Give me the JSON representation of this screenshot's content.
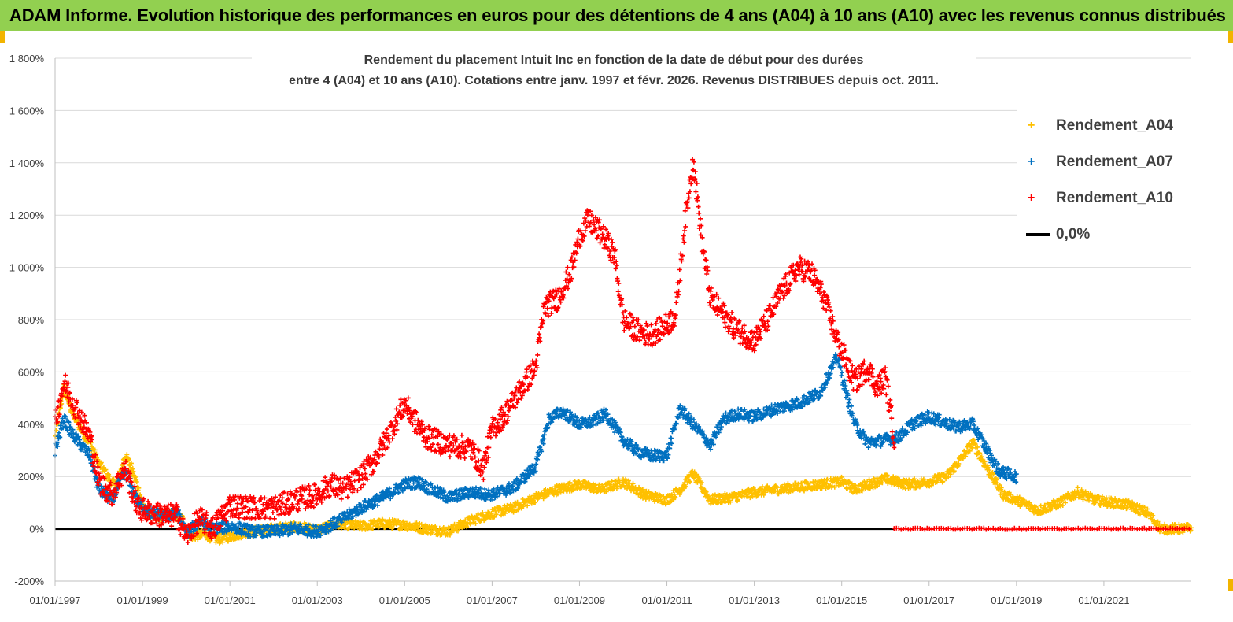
{
  "header": {
    "title": "ADAM Informe. Evolution historique des performances en euros pour des détentions de 4 ans (A04) à 10 ans (A10) avec les revenus connus distribués"
  },
  "chart_data": {
    "type": "scatter",
    "title_line1": "Rendement du placement Intuit Inc en fonction de la date de début pour des durées",
    "title_line2": "entre 4 (A04) et 10 ans (A10). Cotations entre janv. 1997 et févr. 2026. Revenus DISTRIBUES depuis oct. 2011.",
    "xlabel": "",
    "ylabel": "",
    "xlim": [
      1997.0,
      2023.0
    ],
    "ylim": [
      -200,
      1800
    ],
    "y_ticks": [
      "-200%",
      "0%",
      "200%",
      "400%",
      "600%",
      "800%",
      "1 000%",
      "1 200%",
      "1 400%",
      "1 600%",
      "1 800%"
    ],
    "x_ticks": [
      "01/01/1997",
      "01/01/1999",
      "01/01/2001",
      "01/01/2003",
      "01/01/2005",
      "01/01/2007",
      "01/01/2009",
      "01/01/2011",
      "01/01/2013",
      "01/01/2015",
      "01/01/2017",
      "01/01/2019",
      "01/01/2021"
    ],
    "legend": [
      "Rendement_A04",
      "Rendement_A07",
      "Rendement_A10",
      "0,0%"
    ],
    "legend_position": "right",
    "series": [
      {
        "name": "Rendement_A04",
        "color": "#ffc000",
        "x": [
          1997.0,
          1997.2,
          1997.4,
          1997.6,
          1997.8,
          1998.0,
          1998.2,
          1998.4,
          1998.6,
          1998.8,
          1999.0,
          1999.3,
          1999.6,
          1999.9,
          2000.1,
          2000.4,
          2000.7,
          2001.0,
          2001.3,
          2001.6,
          2002.0,
          2002.5,
          2003.0,
          2003.5,
          2004.0,
          2004.5,
          2005.0,
          2005.5,
          2006.0,
          2006.5,
          2007.0,
          2007.5,
          2008.0,
          2008.5,
          2009.0,
          2009.5,
          2010.0,
          2010.5,
          2011.0,
          2011.3,
          2011.6,
          2012.0,
          2012.5,
          2013.0,
          2013.5,
          2014.0,
          2014.5,
          2015.0,
          2015.3,
          2015.6,
          2016.0,
          2016.5,
          2017.0,
          2017.4,
          2017.7,
          2018.0,
          2018.3,
          2018.7,
          2019.0,
          2019.5,
          2020.0,
          2020.4,
          2020.8,
          2021.2,
          2021.6,
          2022.0,
          2022.3,
          2022.6,
          2023.0
        ],
        "y": [
          350,
          540,
          440,
          380,
          330,
          250,
          200,
          160,
          280,
          220,
          80,
          40,
          60,
          40,
          -30,
          -20,
          -40,
          -30,
          -15,
          -10,
          0,
          10,
          -5,
          20,
          10,
          20,
          15,
          0,
          -10,
          30,
          60,
          80,
          120,
          150,
          170,
          150,
          180,
          130,
          110,
          150,
          210,
          110,
          120,
          140,
          150,
          160,
          170,
          180,
          150,
          170,
          190,
          170,
          180,
          200,
          260,
          330,
          240,
          130,
          110,
          70,
          100,
          140,
          110,
          100,
          90,
          60,
          0,
          0,
          0
        ],
        "jitter": 18
      },
      {
        "name": "Rendement_A07",
        "color": "#0070c0",
        "x": [
          1997.0,
          1997.2,
          1997.4,
          1997.6,
          1997.8,
          1998.0,
          1998.3,
          1998.6,
          1998.9,
          1999.2,
          1999.5,
          1999.8,
          2000.0,
          2000.3,
          2000.6,
          2001.0,
          2001.5,
          2002.0,
          2002.5,
          2003.0,
          2003.5,
          2004.0,
          2004.5,
          2005.0,
          2005.3,
          2005.6,
          2006.0,
          2006.5,
          2007.0,
          2007.5,
          2008.0,
          2008.3,
          2008.6,
          2009.0,
          2009.3,
          2009.6,
          2010.0,
          2010.3,
          2010.6,
          2011.0,
          2011.3,
          2011.6,
          2012.0,
          2012.3,
          2012.6,
          2013.0,
          2013.5,
          2014.0,
          2014.5,
          2014.9,
          2015.1,
          2015.3,
          2015.6,
          2016.0,
          2016.3,
          2016.6,
          2017.0,
          2017.3,
          2017.6,
          2018.0,
          2018.3,
          2018.6,
          2019.0
        ],
        "y": [
          300,
          420,
          360,
          320,
          280,
          150,
          110,
          220,
          100,
          60,
          50,
          60,
          -20,
          30,
          0,
          10,
          -10,
          -10,
          0,
          -10,
          30,
          80,
          120,
          170,
          180,
          150,
          120,
          140,
          130,
          160,
          240,
          420,
          450,
          400,
          410,
          440,
          340,
          300,
          280,
          280,
          460,
          400,
          320,
          420,
          440,
          430,
          460,
          480,
          520,
          660,
          520,
          400,
          330,
          340,
          350,
          400,
          430,
          410,
          390,
          400,
          310,
          220,
          200
        ],
        "jitter": 22
      },
      {
        "name": "Rendement_A10",
        "color": "#ff0000",
        "x": [
          1997.0,
          1997.2,
          1997.4,
          1997.6,
          1997.8,
          1998.0,
          1998.3,
          1998.6,
          1998.9,
          1999.2,
          1999.5,
          1999.8,
          2000.0,
          2000.3,
          2000.6,
          2001.0,
          2001.5,
          2002.0,
          2002.5,
          2003.0,
          2003.3,
          2003.6,
          2004.0,
          2004.3,
          2004.6,
          2005.0,
          2005.2,
          2005.5,
          2006.0,
          2006.5,
          2006.8,
          2007.0,
          2007.3,
          2007.6,
          2008.0,
          2008.2,
          2008.5,
          2008.8,
          2009.0,
          2009.2,
          2009.5,
          2009.8,
          2010.0,
          2010.3,
          2010.6,
          2011.0,
          2011.2,
          2011.4,
          2011.6,
          2011.8,
          2012.0,
          2012.3,
          2012.6,
          2013.0,
          2013.3,
          2013.6,
          2014.0,
          2014.3,
          2014.6,
          2014.9,
          2015.1,
          2015.3,
          2015.6,
          2015.8,
          2016.0,
          2016.2
        ],
        "y": [
          400,
          560,
          490,
          420,
          350,
          180,
          130,
          230,
          80,
          60,
          50,
          50,
          -30,
          40,
          0,
          90,
          80,
          80,
          110,
          130,
          170,
          150,
          200,
          260,
          350,
          480,
          420,
          350,
          320,
          310,
          230,
          380,
          440,
          520,
          620,
          850,
          880,
          980,
          1120,
          1180,
          1130,
          1050,
          800,
          760,
          740,
          780,
          820,
          1150,
          1420,
          1100,
          880,
          820,
          760,
          720,
          800,
          900,
          1000,
          980,
          880,
          720,
          640,
          560,
          620,
          540,
          580,
          350
        ],
        "jitter": 45
      }
    ],
    "zero_line": {
      "name": "0,0%",
      "x_range": [
        1997.0,
        2016.2
      ],
      "color": "#000000"
    },
    "a10_zero_tail": {
      "x_range": [
        2016.2,
        2023.0
      ],
      "value": 0
    }
  }
}
